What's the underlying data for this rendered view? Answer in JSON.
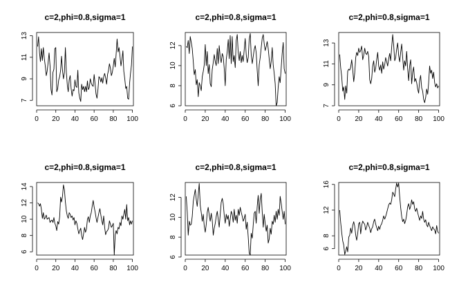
{
  "chart_data": [
    {
      "type": "line",
      "title": "c=2,phi=0.8,sigma=1",
      "xlabel": "",
      "ylabel": "",
      "xlim": [
        0,
        101
      ],
      "ylim": [
        6.5,
        13.3
      ],
      "xticks": [
        0,
        20,
        40,
        60,
        80,
        100
      ],
      "yticks": [
        7,
        9,
        11,
        13
      ],
      "grid": false,
      "x_start": 1,
      "values": [
        12.0,
        12.9,
        11.4,
        10.6,
        11.8,
        10.7,
        11.9,
        10.9,
        10.2,
        9.3,
        9.7,
        10.5,
        11.4,
        10.2,
        8.0,
        7.5,
        9.6,
        9.9,
        11.8,
        11.9,
        7.8,
        8.1,
        8.9,
        9.2,
        9.8,
        11.1,
        9.8,
        9.0,
        9.6,
        11.9,
        9.6,
        8.4,
        7.8,
        8.9,
        9.3,
        8.1,
        7.4,
        8.0,
        7.9,
        8.9,
        8.3,
        8.2,
        9.8,
        7.7,
        7.2,
        6.9,
        8.5,
        8.0,
        8.3,
        7.8,
        8.3,
        7.8,
        8.8,
        8.0,
        8.2,
        9.0,
        8.6,
        8.4,
        8.3,
        9.4,
        8.5,
        7.6,
        7.2,
        8.0,
        9.2,
        9.1,
        8.7,
        9.1,
        8.6,
        9.2,
        9.5,
        9.1,
        8.5,
        9.4,
        9.8,
        10.4,
        10.0,
        9.3,
        9.6,
        10.2,
        10.9,
        10.1,
        11.3,
        12.7,
        11.5,
        11.9,
        11.1,
        10.2,
        10.8,
        11.6,
        9.7,
        9.0,
        8.1,
        8.3,
        7.2,
        7.1,
        8.6,
        9.5,
        10.3,
        12.0
      ]
    },
    {
      "type": "line",
      "title": "c=2,phi=0.8,sigma=1",
      "xlabel": "",
      "ylabel": "",
      "xlim": [
        0,
        101
      ],
      "ylim": [
        6.0,
        13.3
      ],
      "xticks": [
        0,
        20,
        40,
        60,
        80,
        100
      ],
      "yticks": [
        6,
        8,
        10,
        12
      ],
      "grid": false,
      "x_start": 1,
      "values": [
        11.9,
        11.8,
        12.5,
        11.2,
        12.9,
        12.3,
        11.7,
        10.4,
        9.1,
        9.6,
        8.1,
        8.6,
        6.9,
        8.3,
        8.0,
        7.5,
        8.9,
        9.4,
        10.1,
        12.1,
        10.0,
        11.4,
        9.2,
        10.1,
        8.2,
        7.9,
        9.6,
        10.3,
        11.1,
        10.4,
        10.0,
        11.7,
        10.2,
        12.0,
        10.8,
        10.3,
        11.2,
        10.9,
        9.7,
        8.0,
        10.6,
        11.4,
        12.6,
        10.7,
        13.0,
        10.2,
        12.9,
        10.4,
        11.0,
        9.8,
        12.5,
        13.1,
        11.3,
        10.5,
        11.4,
        10.3,
        11.0,
        10.4,
        11.6,
        12.7,
        11.1,
        10.3,
        10.8,
        12.6,
        13.2,
        11.1,
        10.2,
        10.9,
        11.6,
        12.0,
        11.3,
        9.5,
        8.0,
        10.1,
        10.8,
        11.8,
        12.7,
        13.1,
        12.2,
        11.5,
        11.9,
        12.4,
        11.7,
        10.7,
        9.7,
        10.4,
        11.8,
        10.1,
        9.2,
        8.2,
        6.0,
        6.3,
        7.8,
        8.9,
        8.3,
        9.8,
        11.2,
        12.3,
        9.7,
        9.2
      ]
    },
    {
      "type": "line",
      "title": "c=2,phi=0.8,sigma=1",
      "xlabel": "",
      "ylabel": "",
      "xlim": [
        0,
        101
      ],
      "ylim": [
        7.0,
        14.0
      ],
      "xticks": [
        0,
        20,
        40,
        60,
        80,
        100
      ],
      "yticks": [
        7,
        9,
        11,
        13
      ],
      "grid": false,
      "x_start": 1,
      "values": [
        11.9,
        10.6,
        9.8,
        8.4,
        8.8,
        7.6,
        8.9,
        8.2,
        10.3,
        10.5,
        10.4,
        10.7,
        11.4,
        10.5,
        9.3,
        10.1,
        11.6,
        12.1,
        11.8,
        12.5,
        12.1,
        12.3,
        12.7,
        11.4,
        11.8,
        12.5,
        12.0,
        11.9,
        12.2,
        11.7,
        9.5,
        9.1,
        9.6,
        10.8,
        11.3,
        10.2,
        10.6,
        11.4,
        12.1,
        10.8,
        10.4,
        10.9,
        10.1,
        11.2,
        10.5,
        10.9,
        11.6,
        11.2,
        10.8,
        11.5,
        12.0,
        11.3,
        12.6,
        13.8,
        12.8,
        11.3,
        11.6,
        12.4,
        13.0,
        11.8,
        11.2,
        12.1,
        12.9,
        11.6,
        10.4,
        11.3,
        10.8,
        12.2,
        10.6,
        9.4,
        10.8,
        11.4,
        9.1,
        10.2,
        10.7,
        9.3,
        9.6,
        9.2,
        8.6,
        8.2,
        9.4,
        9.9,
        8.7,
        8.4,
        7.6,
        7.3,
        7.8,
        8.6,
        8.1,
        9.2,
        10.8,
        10.1,
        10.4,
        9.6,
        10.2,
        9.2,
        8.8,
        9.1,
        8.7,
        8.9
      ]
    },
    {
      "type": "line",
      "title": "c=2,phi=0.8,sigma=1",
      "xlabel": "",
      "ylabel": "",
      "xlim": [
        0,
        101
      ],
      "ylim": [
        5.6,
        14.5
      ],
      "xticks": [
        0,
        20,
        40,
        60,
        80,
        100
      ],
      "yticks": [
        6,
        8,
        10,
        12,
        14
      ],
      "grid": false,
      "x_start": 1,
      "values": [
        12.0,
        11.9,
        11.6,
        11.9,
        11.2,
        10.1,
        10.8,
        10.0,
        10.2,
        10.5,
        10.0,
        10.1,
        10.2,
        9.6,
        9.8,
        9.9,
        9.6,
        10.2,
        9.5,
        9.2,
        8.6,
        9.7,
        9.4,
        10.3,
        12.7,
        12.1,
        12.8,
        14.2,
        13.6,
        12.1,
        11.0,
        10.4,
        10.1,
        10.8,
        10.6,
        10.2,
        10.4,
        9.9,
        10.2,
        9.3,
        9.8,
        9.5,
        8.8,
        8.2,
        8.6,
        8.9,
        8.0,
        7.5,
        8.2,
        9.0,
        8.4,
        8.8,
        10.0,
        10.3,
        9.6,
        10.4,
        10.8,
        11.6,
        12.3,
        11.5,
        10.9,
        10.2,
        9.6,
        10.2,
        10.8,
        11.3,
        10.5,
        9.8,
        9.3,
        10.4,
        9.0,
        8.1,
        8.5,
        8.6,
        8.9,
        9.8,
        9.4,
        9.0,
        9.2,
        9.5,
        5.6,
        8.1,
        8.6,
        8.2,
        9.0,
        8.8,
        9.6,
        9.2,
        10.4,
        10.0,
        10.6,
        11.2,
        10.0,
        11.8,
        9.8,
        10.2,
        9.3,
        9.8,
        9.4,
        9.8
      ]
    },
    {
      "type": "line",
      "title": "c=2,phi=0.8,sigma=1",
      "xlabel": "",
      "ylabel": "",
      "xlim": [
        0,
        101
      ],
      "ylim": [
        6.2,
        13.5
      ],
      "xticks": [
        0,
        20,
        40,
        60,
        80,
        100
      ],
      "yticks": [
        6,
        8,
        10,
        12
      ],
      "grid": false,
      "x_start": 1,
      "values": [
        12.1,
        10.5,
        8.2,
        9.6,
        9.2,
        9.3,
        10.1,
        11.6,
        12.2,
        12.8,
        11.8,
        11.1,
        12.3,
        13.4,
        11.2,
        10.5,
        9.6,
        10.3,
        9.1,
        8.5,
        9.3,
        10.5,
        11.0,
        10.2,
        9.6,
        10.4,
        9.7,
        8.2,
        8.9,
        9.4,
        10.1,
        10.6,
        9.8,
        9.0,
        10.3,
        11.5,
        11.9,
        11.4,
        10.2,
        9.4,
        10.3,
        9.8,
        10.2,
        9.1,
        9.8,
        10.6,
        10.3,
        9.5,
        10.8,
        9.7,
        10.2,
        9.4,
        10.8,
        10.2,
        11.0,
        10.5,
        10.1,
        9.6,
        9.9,
        10.3,
        8.8,
        9.5,
        8.0,
        6.4,
        6.2,
        8.4,
        7.9,
        9.2,
        10.4,
        10.6,
        9.4,
        11.1,
        12.2,
        10.4,
        11.8,
        12.4,
        10.6,
        9.0,
        10.3,
        9.4,
        8.6,
        9.2,
        7.4,
        7.8,
        8.9,
        8.3,
        9.6,
        9.3,
        10.2,
        9.5,
        10.6,
        9.8,
        10.8,
        10.2,
        12.1,
        11.4,
        10.6,
        9.8,
        10.6,
        9.3
      ]
    },
    {
      "type": "line",
      "title": "c=2,phi=0.8,sigma=1",
      "xlabel": "",
      "ylabel": "",
      "xlim": [
        0,
        101
      ],
      "ylim": [
        5.0,
        16.3
      ],
      "xticks": [
        0,
        20,
        40,
        60,
        80,
        100
      ],
      "yticks": [
        6,
        8,
        12,
        16
      ],
      "grid": false,
      "x_start": 1,
      "values": [
        12.0,
        10.0,
        8.5,
        7.2,
        6.6,
        5.1,
        5.6,
        6.3,
        5.5,
        7.8,
        8.1,
        9.2,
        8.4,
        9.6,
        10.2,
        9.5,
        8.1,
        7.3,
        8.4,
        9.9,
        10.1,
        8.3,
        9.6,
        10.3,
        10.0,
        9.8,
        8.9,
        9.4,
        10.1,
        9.6,
        9.2,
        8.5,
        9.1,
        9.4,
        10.2,
        10.6,
        9.8,
        9.3,
        8.8,
        9.5,
        9.0,
        9.6,
        9.9,
        10.4,
        11.1,
        10.6,
        11.0,
        11.6,
        12.2,
        12.8,
        13.1,
        12.9,
        13.6,
        14.8,
        14.5,
        14.1,
        15.3,
        16.2,
        15.6,
        16.2,
        14.1,
        12.4,
        11.0,
        10.2,
        10.6,
        9.9,
        10.4,
        11.3,
        12.5,
        13.0,
        12.1,
        12.6,
        13.6,
        12.9,
        13.3,
        12.2,
        11.8,
        12.3,
        11.6,
        11.0,
        10.4,
        11.1,
        10.7,
        11.8,
        10.6,
        10.1,
        10.5,
        9.7,
        9.4,
        10.1,
        9.6,
        9.2,
        8.8,
        9.4,
        9.1,
        8.9,
        8.3,
        9.6,
        8.7,
        8.4
      ]
    }
  ]
}
